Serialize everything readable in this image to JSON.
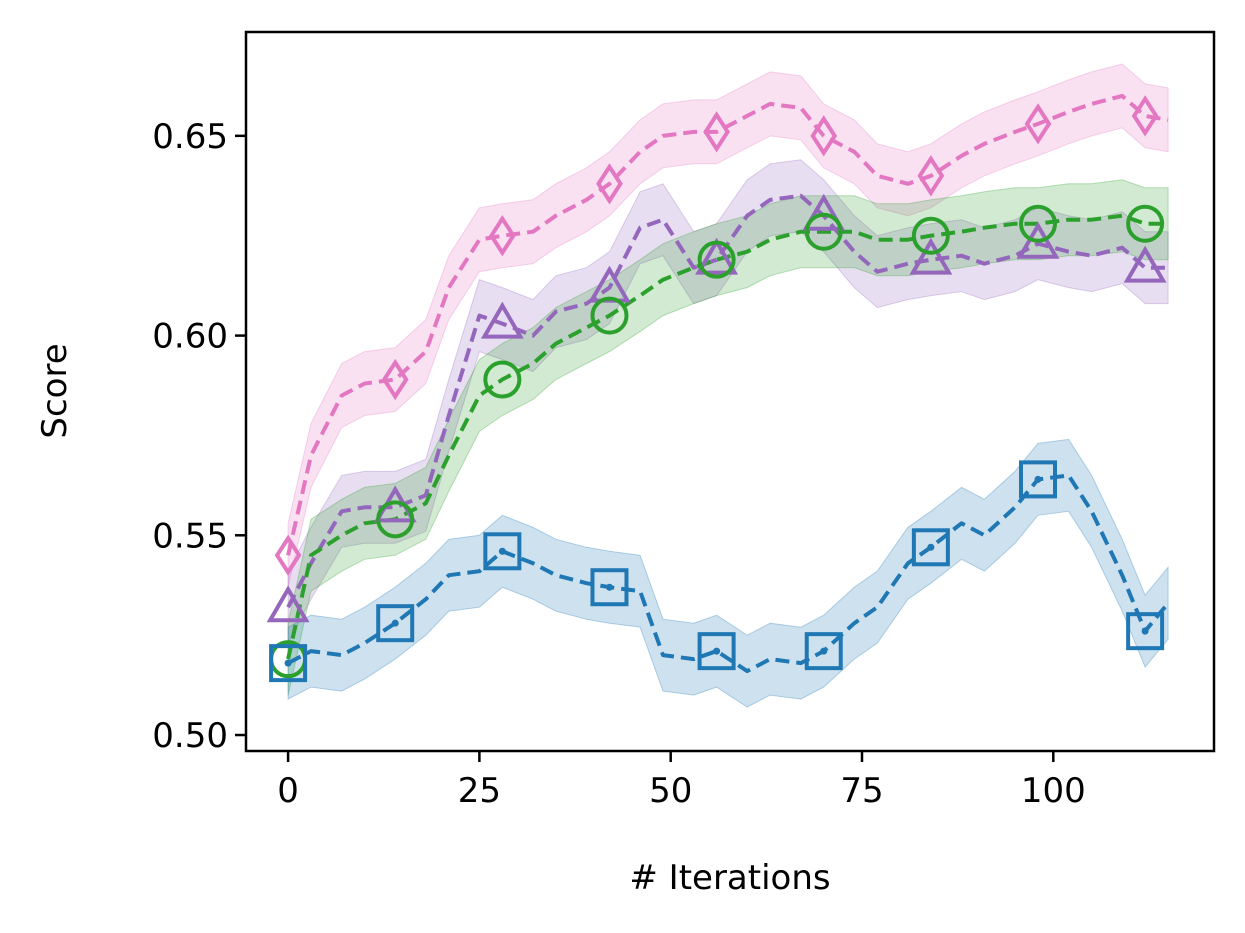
{
  "chart_data": {
    "type": "line",
    "title": "",
    "xlabel": "# Iterations",
    "ylabel": "Score",
    "xlim": [
      -5.5,
      121
    ],
    "ylim": [
      0.496,
      0.676
    ],
    "xticks": [
      0,
      25,
      50,
      75,
      100
    ],
    "xtick_labels": [
      "0",
      "25",
      "50",
      "75",
      "100"
    ],
    "yticks": [
      0.5,
      0.55,
      0.6,
      0.65
    ],
    "ytick_labels": [
      "0.50",
      "0.55",
      "0.60",
      "0.65"
    ],
    "grid": false,
    "legend": "none",
    "series": [
      {
        "color": "#e377c2",
        "marker": "diamond",
        "band": 0.008,
        "x": [
          0,
          3,
          7,
          10,
          14,
          18,
          21,
          25,
          28,
          32,
          35,
          39,
          42,
          46,
          49,
          53,
          56,
          60,
          63,
          67,
          70,
          74,
          77,
          81,
          84,
          88,
          91,
          95,
          98,
          102,
          105,
          109,
          112,
          115
        ],
        "y": [
          0.545,
          0.57,
          0.585,
          0.588,
          0.589,
          0.596,
          0.612,
          0.624,
          0.625,
          0.626,
          0.63,
          0.634,
          0.638,
          0.646,
          0.65,
          0.651,
          0.651,
          0.655,
          0.658,
          0.657,
          0.65,
          0.646,
          0.64,
          0.638,
          0.64,
          0.645,
          0.648,
          0.651,
          0.653,
          0.656,
          0.658,
          0.66,
          0.655,
          0.654
        ],
        "marker_x": [
          0,
          14,
          28,
          42,
          56,
          70,
          84,
          98,
          112
        ],
        "marker_y": [
          0.545,
          0.589,
          0.625,
          0.638,
          0.651,
          0.65,
          0.64,
          0.653,
          0.655
        ]
      },
      {
        "color": "#9467bd",
        "marker": "triangle",
        "band": 0.009,
        "x": [
          0,
          3,
          7,
          10,
          14,
          18,
          21,
          25,
          28,
          32,
          35,
          39,
          42,
          46,
          49,
          53,
          56,
          60,
          63,
          67,
          70,
          74,
          77,
          81,
          84,
          88,
          91,
          95,
          98,
          102,
          105,
          109,
          112,
          115
        ],
        "y": [
          0.532,
          0.543,
          0.556,
          0.557,
          0.557,
          0.56,
          0.58,
          0.605,
          0.603,
          0.6,
          0.606,
          0.608,
          0.612,
          0.627,
          0.629,
          0.617,
          0.619,
          0.63,
          0.634,
          0.635,
          0.63,
          0.621,
          0.616,
          0.618,
          0.619,
          0.62,
          0.618,
          0.62,
          0.623,
          0.621,
          0.62,
          0.622,
          0.617,
          0.617
        ],
        "marker_x": [
          0,
          14,
          28,
          42,
          56,
          70,
          84,
          98,
          112
        ],
        "marker_y": [
          0.532,
          0.557,
          0.603,
          0.612,
          0.619,
          0.63,
          0.619,
          0.623,
          0.617
        ]
      },
      {
        "color": "#2ca02c",
        "marker": "circle",
        "band": 0.009,
        "x": [
          0,
          3,
          7,
          10,
          14,
          18,
          21,
          25,
          28,
          32,
          35,
          39,
          42,
          46,
          49,
          53,
          56,
          60,
          63,
          67,
          70,
          74,
          77,
          81,
          84,
          88,
          91,
          95,
          98,
          102,
          105,
          109,
          112,
          115
        ],
        "y": [
          0.519,
          0.545,
          0.55,
          0.553,
          0.554,
          0.558,
          0.57,
          0.585,
          0.589,
          0.593,
          0.598,
          0.602,
          0.605,
          0.61,
          0.614,
          0.617,
          0.619,
          0.621,
          0.624,
          0.626,
          0.626,
          0.626,
          0.624,
          0.624,
          0.625,
          0.626,
          0.627,
          0.628,
          0.628,
          0.629,
          0.629,
          0.63,
          0.628,
          0.628
        ],
        "marker_x": [
          0,
          14,
          28,
          42,
          56,
          70,
          84,
          98,
          112
        ],
        "marker_y": [
          0.519,
          0.554,
          0.589,
          0.605,
          0.619,
          0.626,
          0.625,
          0.628,
          0.628
        ]
      },
      {
        "color": "#1f77b4",
        "marker": "square",
        "band": 0.009,
        "x": [
          0,
          3,
          7,
          10,
          14,
          18,
          21,
          25,
          28,
          32,
          35,
          39,
          42,
          46,
          49,
          53,
          56,
          60,
          63,
          67,
          70,
          74,
          77,
          81,
          84,
          88,
          91,
          95,
          98,
          102,
          105,
          109,
          112,
          115
        ],
        "y": [
          0.518,
          0.521,
          0.52,
          0.523,
          0.528,
          0.534,
          0.54,
          0.541,
          0.546,
          0.543,
          0.54,
          0.538,
          0.537,
          0.536,
          0.52,
          0.519,
          0.521,
          0.516,
          0.519,
          0.518,
          0.521,
          0.528,
          0.532,
          0.543,
          0.547,
          0.553,
          0.55,
          0.557,
          0.564,
          0.565,
          0.556,
          0.54,
          0.526,
          0.533
        ],
        "marker_x": [
          0,
          14,
          28,
          42,
          56,
          70,
          84,
          98,
          112
        ],
        "marker_y": [
          0.518,
          0.528,
          0.546,
          0.537,
          0.521,
          0.521,
          0.547,
          0.564,
          0.526
        ]
      }
    ]
  }
}
